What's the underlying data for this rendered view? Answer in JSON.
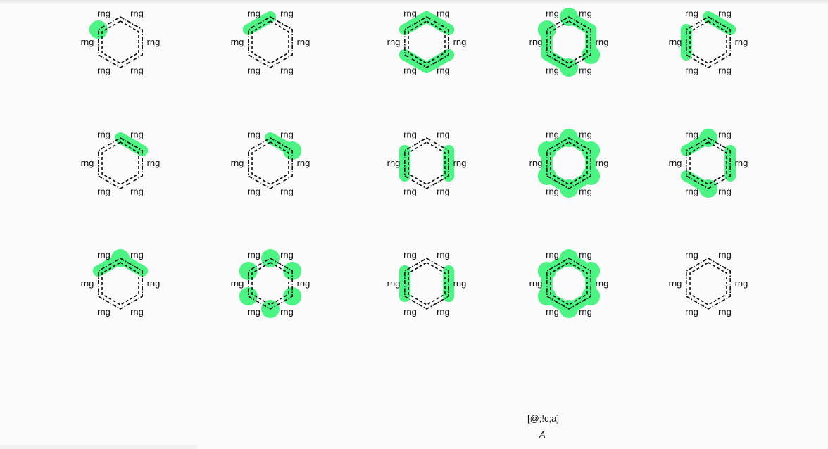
{
  "query": "[@;!c;a]",
  "legend": "A",
  "atom_label": "rng",
  "highlight_color": "#4cf583",
  "molecules": [
    {
      "highlight_atoms": [
        5
      ],
      "highlight_bonds": []
    },
    {
      "highlight_atoms": [],
      "highlight_bonds": [
        [
          0,
          5
        ]
      ]
    },
    {
      "highlight_atoms": [],
      "highlight_bonds": [
        [
          0,
          1
        ],
        [
          0,
          5
        ],
        [
          2,
          3
        ],
        [
          3,
          4
        ]
      ]
    },
    {
      "highlight_atoms": [
        0,
        2,
        3,
        5
      ],
      "highlight_bonds": [
        [
          0,
          1
        ],
        [
          1,
          2
        ],
        [
          3,
          4
        ],
        [
          4,
          5
        ]
      ]
    },
    {
      "highlight_atoms": [],
      "highlight_bonds": [
        [
          0,
          1
        ],
        [
          4,
          5
        ]
      ]
    },
    {
      "highlight_atoms": [],
      "highlight_bonds": [
        [
          0,
          1
        ]
      ]
    },
    {
      "highlight_atoms": [
        1
      ],
      "highlight_bonds": [
        [
          0,
          1
        ]
      ]
    },
    {
      "highlight_atoms": [],
      "highlight_bonds": [
        [
          1,
          2
        ],
        [
          4,
          5
        ]
      ]
    },
    {
      "highlight_atoms": [
        0,
        1,
        2,
        3,
        4,
        5
      ],
      "highlight_bonds": [
        [
          0,
          1
        ],
        [
          1,
          2
        ],
        [
          2,
          3
        ],
        [
          3,
          4
        ],
        [
          4,
          5
        ],
        [
          5,
          0
        ]
      ]
    },
    {
      "highlight_atoms": [
        0,
        3
      ],
      "highlight_bonds": [
        [
          0,
          5
        ],
        [
          1,
          2
        ],
        [
          3,
          4
        ]
      ]
    },
    {
      "highlight_atoms": [
        0
      ],
      "highlight_bonds": [
        [
          0,
          1
        ],
        [
          0,
          5
        ]
      ]
    },
    {
      "highlight_atoms": [
        0,
        1,
        2,
        3,
        4,
        5
      ],
      "highlight_bonds": []
    },
    {
      "highlight_atoms": [],
      "highlight_bonds": [
        [
          1,
          2
        ],
        [
          4,
          5
        ]
      ]
    },
    {
      "highlight_atoms": [
        0,
        1,
        2,
        3,
        4,
        5
      ],
      "highlight_bonds": [
        [
          0,
          1
        ],
        [
          1,
          2
        ],
        [
          2,
          3
        ],
        [
          3,
          4
        ],
        [
          4,
          5
        ],
        [
          5,
          0
        ]
      ]
    },
    {
      "highlight_atoms": [],
      "highlight_bonds": []
    }
  ]
}
